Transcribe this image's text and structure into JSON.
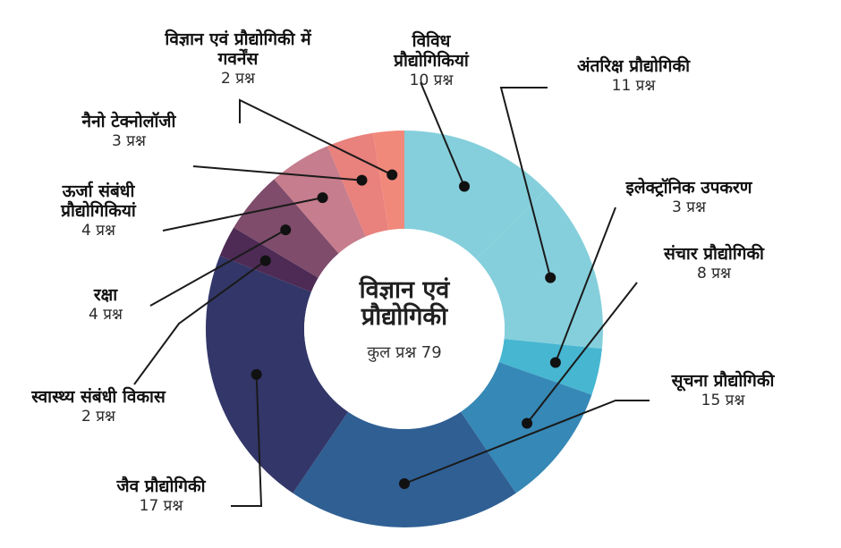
{
  "chart_data": {
    "type": "pie",
    "donut": true,
    "title": "विज्ञान एवं प्रौद्योगिकी",
    "total_label": "कुल प्रश्न 79",
    "total": 79,
    "unit": "प्रश्न",
    "categories": [
      "विविध प्रौद्योगिकियां",
      "अंतरिक्ष प्रौद्योगिकी",
      "इलेक्ट्रॉनिक उपकरण",
      "संचार प्रौद्योगिकी",
      "सूचना प्रौद्योगिकी",
      "जैव प्रौद्योगिकी",
      "स्वास्थ्य संबंधी विकास",
      "रक्षा",
      "ऊर्जा संबंधी प्रौद्योगिकियां",
      "नैनो टेक्नोलॉजी",
      "विज्ञान एवं प्रौद्योगिकी में गवर्नेंस"
    ],
    "values": [
      10,
      11,
      3,
      8,
      15,
      17,
      2,
      4,
      4,
      3,
      2
    ],
    "count_labels": [
      "10 प्रश्न",
      "11 प्रश्न",
      "3 प्रश्न",
      "8 प्रश्न",
      "15 प्रश्न",
      "17 प्रश्न",
      "2 प्रश्न",
      "4 प्रश्न",
      "4 प्रश्न",
      "3 प्रश्न",
      "2 प्रश्न"
    ],
    "colors": [
      "#85CFDC",
      "#85CFDC",
      "#46B6D1",
      "#3688B6",
      "#2F5F93",
      "#323668",
      "#4D2B55",
      "#7F4C6B",
      "#C67D8D",
      "#E9817D",
      "#F1897B"
    ]
  },
  "center": {
    "title_line1": "विज्ञान एवं",
    "title_line2": "प्रौद्योगिकी",
    "total_text": "कुल प्रश्न 79"
  }
}
